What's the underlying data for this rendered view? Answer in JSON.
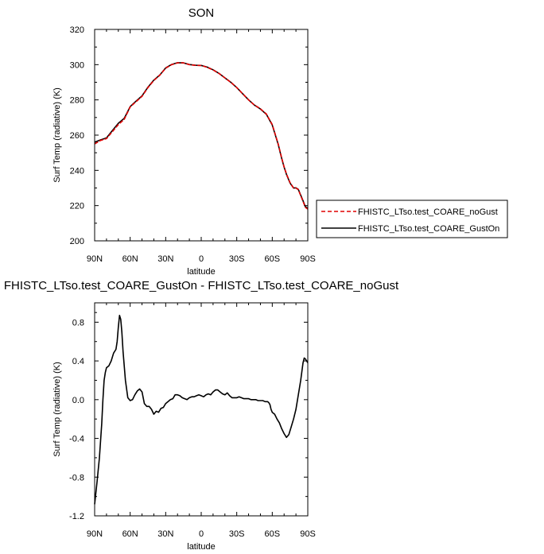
{
  "chart_data": [
    {
      "type": "line",
      "title": "SON",
      "xlabel": "latitude",
      "ylabel": "Surf Temp (radiative) (K)",
      "xlim": [
        90,
        -90
      ],
      "ylim": [
        200,
        320
      ],
      "x_ticks": [
        {
          "value": 90,
          "label": "90N"
        },
        {
          "value": 60,
          "label": "60N"
        },
        {
          "value": 30,
          "label": "30N"
        },
        {
          "value": 0,
          "label": "0"
        },
        {
          "value": -30,
          "label": "30S"
        },
        {
          "value": -60,
          "label": "60S"
        },
        {
          "value": -90,
          "label": "90S"
        }
      ],
      "y_ticks": [
        200,
        220,
        240,
        260,
        280,
        300,
        320
      ],
      "legend_position": "right",
      "series": [
        {
          "name": "FHISTC_LTso.test_COARE_noGust",
          "color": "#e00000",
          "dash": "dashed",
          "x": [
            90,
            85,
            80,
            75,
            70,
            65,
            60,
            55,
            50,
            45,
            40,
            35,
            30,
            25,
            20,
            15,
            10,
            5,
            0,
            -5,
            -10,
            -15,
            -20,
            -25,
            -30,
            -35,
            -40,
            -45,
            -50,
            -55,
            -60,
            -65,
            -68,
            -70,
            -72,
            -75,
            -78,
            -80,
            -82,
            -85,
            -88,
            -90
          ],
          "y": [
            255,
            257,
            258,
            262,
            266,
            269,
            276,
            279,
            282,
            287,
            291,
            294,
            298,
            300,
            301,
            301,
            300,
            299.6,
            299.5,
            298.5,
            297,
            295,
            292.5,
            290,
            287,
            283.5,
            280,
            277,
            275,
            272,
            266,
            255,
            247,
            242,
            238,
            233,
            230,
            230,
            229,
            224,
            219,
            218
          ]
        },
        {
          "name": "FHISTC_LTso.test_COARE_GustOn",
          "color": "#000000",
          "dash": "solid",
          "x": [
            90,
            85,
            80,
            75,
            70,
            65,
            60,
            55,
            50,
            45,
            40,
            35,
            30,
            25,
            20,
            15,
            10,
            5,
            0,
            -5,
            -10,
            -15,
            -20,
            -25,
            -30,
            -35,
            -40,
            -45,
            -50,
            -55,
            -60,
            -65,
            -68,
            -70,
            -72,
            -75,
            -78,
            -80,
            -82,
            -85,
            -88,
            -90
          ],
          "y": [
            256,
            257.3,
            258.4,
            262.6,
            266.7,
            269.5,
            276.2,
            279.3,
            282.3,
            287.2,
            291.2,
            294.1,
            298.1,
            300.1,
            301.1,
            301,
            300.05,
            299.65,
            299.55,
            298.6,
            297.1,
            295.05,
            292.5,
            290,
            287,
            283.5,
            280,
            277,
            274.85,
            271.8,
            265.75,
            254.7,
            246.75,
            241.85,
            237.7,
            232.8,
            229.95,
            230.1,
            229.2,
            224.3,
            219.4,
            218.4
          ]
        }
      ]
    },
    {
      "type": "line",
      "title": "FHISTC_LTso.test_COARE_GustOn - FHISTC_LTso.test_COARE_noGust",
      "xlabel": "latitude",
      "ylabel": "Surf Temp (radiative) (K)",
      "xlim": [
        90,
        -90
      ],
      "ylim": [
        -1.2,
        1.0
      ],
      "x_ticks": [
        {
          "value": 90,
          "label": "90N"
        },
        {
          "value": 60,
          "label": "60N"
        },
        {
          "value": 30,
          "label": "30N"
        },
        {
          "value": 0,
          "label": "0"
        },
        {
          "value": -30,
          "label": "30S"
        },
        {
          "value": -60,
          "label": "60S"
        },
        {
          "value": -90,
          "label": "90S"
        }
      ],
      "y_ticks": [
        {
          "value": -1.2,
          "label": "-1.2"
        },
        {
          "value": -0.8,
          "label": "-0.8"
        },
        {
          "value": -0.4,
          "label": "-0.4"
        },
        {
          "value": 0.0,
          "label": "0.0"
        },
        {
          "value": 0.4,
          "label": "0.4"
        },
        {
          "value": 0.8,
          "label": "0.8"
        }
      ],
      "series": [
        {
          "color": "#000000",
          "dash": "solid",
          "x": [
            90,
            88,
            86,
            84,
            83,
            82,
            81,
            80,
            78,
            76,
            74,
            72,
            71,
            70,
            69,
            68,
            67,
            66,
            64,
            62,
            60,
            58,
            56,
            54,
            52,
            50,
            48,
            46,
            44,
            42,
            40,
            38,
            36,
            34,
            32,
            30,
            28,
            26,
            24,
            22,
            20,
            18,
            16,
            14,
            12,
            10,
            8,
            6,
            4,
            2,
            0,
            -2,
            -4,
            -6,
            -8,
            -10,
            -12,
            -14,
            -16,
            -18,
            -20,
            -22,
            -24,
            -26,
            -28,
            -30,
            -32,
            -34,
            -36,
            -38,
            -40,
            -42,
            -44,
            -46,
            -48,
            -50,
            -52,
            -54,
            -56,
            -57,
            -58,
            -59,
            -60,
            -62,
            -64,
            -66,
            -68,
            -70,
            -72,
            -74,
            -76,
            -78,
            -80,
            -82,
            -84,
            -86,
            -87,
            -88,
            -89,
            -90
          ],
          "y": [
            -1.08,
            -0.85,
            -0.6,
            -0.25,
            0.0,
            0.2,
            0.28,
            0.33,
            0.35,
            0.4,
            0.48,
            0.52,
            0.6,
            0.75,
            0.87,
            0.83,
            0.7,
            0.5,
            0.2,
            0.02,
            -0.01,
            0.0,
            0.05,
            0.09,
            0.11,
            0.08,
            -0.04,
            -0.07,
            -0.07,
            -0.1,
            -0.15,
            -0.12,
            -0.13,
            -0.09,
            -0.08,
            -0.04,
            -0.02,
            0.0,
            0.01,
            0.05,
            0.05,
            0.04,
            0.02,
            0.01,
            0.0,
            0.02,
            0.03,
            0.03,
            0.04,
            0.05,
            0.04,
            0.03,
            0.05,
            0.06,
            0.05,
            0.08,
            0.1,
            0.1,
            0.08,
            0.06,
            0.05,
            0.07,
            0.04,
            0.02,
            0.02,
            0.02,
            0.03,
            0.02,
            0.01,
            0.01,
            0.01,
            0.0,
            0.0,
            0.0,
            -0.01,
            -0.01,
            -0.01,
            -0.02,
            -0.02,
            -0.03,
            -0.05,
            -0.1,
            -0.13,
            -0.15,
            -0.2,
            -0.24,
            -0.3,
            -0.35,
            -0.39,
            -0.36,
            -0.28,
            -0.2,
            -0.1,
            0.05,
            0.2,
            0.38,
            0.43,
            0.42,
            0.4,
            0.38
          ]
        }
      ]
    }
  ],
  "legend": {
    "entries": [
      {
        "label": "FHISTC_LTso.test_COARE_noGust",
        "color": "#e00000",
        "dash": "dashed"
      },
      {
        "label": "FHISTC_LTso.test_COARE_GustOn",
        "color": "#000000",
        "dash": "solid"
      }
    ]
  }
}
